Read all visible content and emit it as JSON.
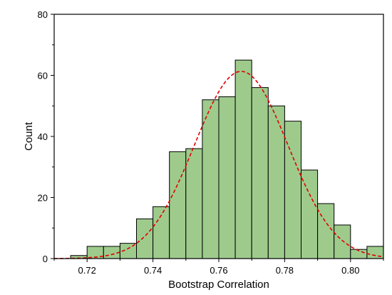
{
  "chart_data": {
    "type": "histogram",
    "title": "",
    "xlabel": "Bootstrap Correlation",
    "ylabel": "Count",
    "xlim": [
      0.71,
      0.81
    ],
    "ylim": [
      0,
      80
    ],
    "xticks": [
      0.72,
      0.74,
      0.76,
      0.78,
      0.8
    ],
    "xtick_labels": [
      "0.72",
      "0.74",
      "0.76",
      "0.78",
      "0.80"
    ],
    "yticks": [
      0,
      20,
      40,
      60,
      80
    ],
    "ytick_labels": [
      "0",
      "20",
      "40",
      "60",
      "80"
    ],
    "bin_width": 0.005,
    "bins": [
      {
        "x0": 0.715,
        "x1": 0.72,
        "count": 1
      },
      {
        "x0": 0.72,
        "x1": 0.725,
        "count": 4
      },
      {
        "x0": 0.725,
        "x1": 0.73,
        "count": 4
      },
      {
        "x0": 0.73,
        "x1": 0.735,
        "count": 5
      },
      {
        "x0": 0.735,
        "x1": 0.74,
        "count": 13
      },
      {
        "x0": 0.74,
        "x1": 0.745,
        "count": 17
      },
      {
        "x0": 0.745,
        "x1": 0.75,
        "count": 35
      },
      {
        "x0": 0.75,
        "x1": 0.755,
        "count": 36
      },
      {
        "x0": 0.755,
        "x1": 0.76,
        "count": 52
      },
      {
        "x0": 0.76,
        "x1": 0.765,
        "count": 53
      },
      {
        "x0": 0.765,
        "x1": 0.77,
        "count": 65
      },
      {
        "x0": 0.77,
        "x1": 0.775,
        "count": 56
      },
      {
        "x0": 0.775,
        "x1": 0.78,
        "count": 50
      },
      {
        "x0": 0.78,
        "x1": 0.785,
        "count": 45
      },
      {
        "x0": 0.785,
        "x1": 0.79,
        "count": 29
      },
      {
        "x0": 0.79,
        "x1": 0.795,
        "count": 18
      },
      {
        "x0": 0.795,
        "x1": 0.8,
        "count": 11
      },
      {
        "x0": 0.8,
        "x1": 0.805,
        "count": 3
      },
      {
        "x0": 0.805,
        "x1": 0.81,
        "count": 4
      }
    ],
    "fit_curve": {
      "type": "normal",
      "mean": 0.7668,
      "peak": 61.3,
      "sigma": 0.0142,
      "style": "dashed"
    },
    "colors": {
      "bar_fill": "#9ecb8c",
      "bar_stroke": "#000000",
      "curve": "#e00000",
      "axis": "#000000"
    },
    "grid": false,
    "legend": "none"
  }
}
